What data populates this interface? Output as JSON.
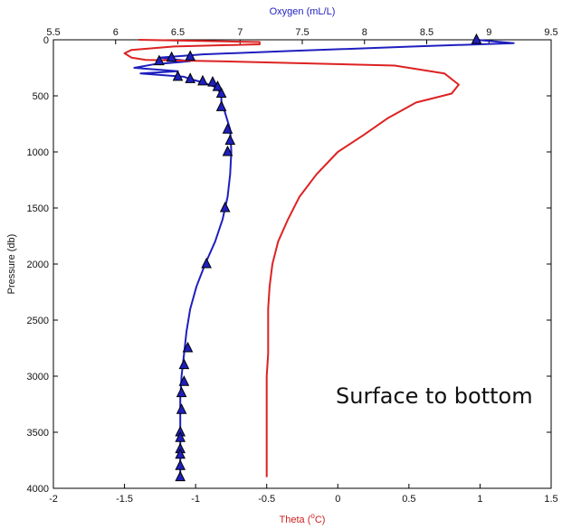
{
  "chart_data": {
    "type": "line",
    "top_axis_label": "Oxygen (mL/L)",
    "bottom_axis_label": "Theta (°C)",
    "bottom_axis_label_parts": {
      "base": "Theta (",
      "sup": "o",
      "tail": "C)"
    },
    "ylabel": "Pressure (db)",
    "annotation": "Surface to bottom",
    "top_axis": {
      "range": [
        5.5,
        9.5
      ],
      "ticks": [
        "5.5",
        "6",
        "6.5",
        "7",
        "7.5",
        "8",
        "8.5",
        "9",
        "9.5"
      ],
      "color": "#1f1fbf"
    },
    "bottom_axis": {
      "range": [
        -2,
        1.5
      ],
      "ticks": [
        "-2",
        "-1.5",
        "-1",
        "-0.5",
        "0",
        "0.5",
        "1",
        "1.5"
      ],
      "color": "#cc2222"
    },
    "y_axis": {
      "range": [
        0,
        4000
      ],
      "reversed": true,
      "ticks": [
        "0",
        "500",
        "1000",
        "1500",
        "2000",
        "2500",
        "3000",
        "3500",
        "4000"
      ]
    },
    "grid": false,
    "series": [
      {
        "axis": "top",
        "color": "#1f1fbf",
        "points": [
          [
            8.9,
            0
          ],
          [
            9.2,
            30
          ],
          [
            8.4,
            60
          ],
          [
            7.4,
            100
          ],
          [
            6.7,
            130
          ],
          [
            6.35,
            160
          ],
          [
            6.6,
            190
          ],
          [
            6.3,
            220
          ],
          [
            6.15,
            250
          ],
          [
            6.5,
            280
          ],
          [
            6.2,
            300
          ],
          [
            6.55,
            330
          ],
          [
            6.6,
            350
          ],
          [
            6.7,
            380
          ],
          [
            6.8,
            420
          ],
          [
            6.85,
            480
          ],
          [
            6.85,
            550
          ],
          [
            6.88,
            650
          ],
          [
            6.92,
            800
          ],
          [
            6.93,
            1000
          ],
          [
            6.92,
            1200
          ],
          [
            6.9,
            1400
          ],
          [
            6.86,
            1600
          ],
          [
            6.8,
            1800
          ],
          [
            6.72,
            2000
          ],
          [
            6.65,
            2200
          ],
          [
            6.6,
            2400
          ],
          [
            6.57,
            2600
          ],
          [
            6.55,
            2800
          ],
          [
            6.53,
            3000
          ],
          [
            6.52,
            3200
          ],
          [
            6.52,
            3400
          ],
          [
            6.52,
            3600
          ],
          [
            6.52,
            3800
          ],
          [
            6.52,
            3900
          ]
        ]
      },
      {
        "axis": "bottom",
        "color": "#dd2222",
        "points": [
          [
            -1.4,
            0
          ],
          [
            -0.55,
            20
          ],
          [
            -0.55,
            40
          ],
          [
            -1.15,
            60
          ],
          [
            -1.45,
            90
          ],
          [
            -1.5,
            120
          ],
          [
            -1.45,
            160
          ],
          [
            -1.35,
            180
          ],
          [
            -0.7,
            195
          ],
          [
            0.4,
            230
          ],
          [
            0.75,
            300
          ],
          [
            0.85,
            400
          ],
          [
            0.8,
            480
          ],
          [
            0.55,
            560
          ],
          [
            0.35,
            700
          ],
          [
            0.18,
            850
          ],
          [
            0.0,
            1000
          ],
          [
            -0.15,
            1200
          ],
          [
            -0.27,
            1400
          ],
          [
            -0.35,
            1600
          ],
          [
            -0.42,
            1800
          ],
          [
            -0.46,
            2000
          ],
          [
            -0.48,
            2200
          ],
          [
            -0.49,
            2400
          ],
          [
            -0.49,
            2600
          ],
          [
            -0.49,
            2800
          ],
          [
            -0.5,
            3000
          ],
          [
            -0.5,
            3500
          ],
          [
            -0.5,
            3900
          ]
        ]
      }
    ],
    "markers": {
      "type": "triangle",
      "fill": "#1f1fbf",
      "stroke": "#000000",
      "axis": "top",
      "points": [
        [
          8.9,
          0
        ],
        [
          6.6,
          150
        ],
        [
          6.45,
          160
        ],
        [
          6.35,
          190
        ],
        [
          6.5,
          330
        ],
        [
          6.6,
          350
        ],
        [
          6.7,
          370
        ],
        [
          6.78,
          380
        ],
        [
          6.82,
          420
        ],
        [
          6.85,
          480
        ],
        [
          6.85,
          600
        ],
        [
          6.9,
          800
        ],
        [
          6.92,
          900
        ],
        [
          6.9,
          1000
        ],
        [
          6.88,
          1500
        ],
        [
          6.73,
          2000
        ],
        [
          6.58,
          2750
        ],
        [
          6.55,
          2900
        ],
        [
          6.55,
          3050
        ],
        [
          6.53,
          3150
        ],
        [
          6.53,
          3300
        ],
        [
          6.52,
          3500
        ],
        [
          6.52,
          3550
        ],
        [
          6.52,
          3650
        ],
        [
          6.52,
          3700
        ],
        [
          6.52,
          3800
        ],
        [
          6.52,
          3900
        ]
      ]
    }
  }
}
